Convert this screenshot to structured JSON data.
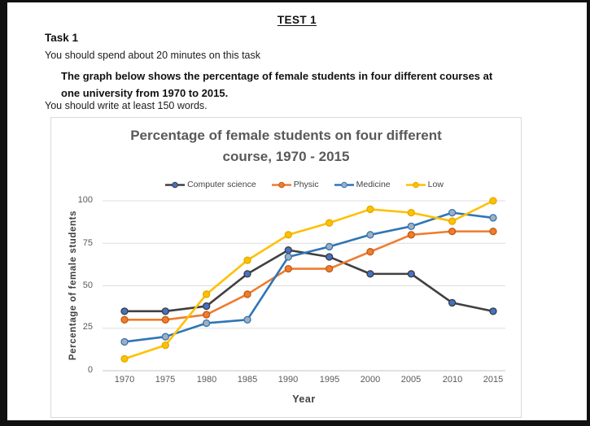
{
  "header": {
    "test_title": "TEST 1",
    "task_label": "Task 1",
    "time_note": "You should spend about 20 minutes on this task",
    "prompt_lines": [
      "The graph below shows the percentage of female students in four different courses at",
      "one university from 1970 to 2015."
    ],
    "word_note": "You should write at least 150 words."
  },
  "chart_data": {
    "type": "line",
    "title": "Percentage of female students on four different course, 1970 - 2015",
    "title_line1": "Percentage of female students on four different",
    "title_line2": "course, 1970 - 2015",
    "xlabel": "Year",
    "ylabel": "Percentage of female students",
    "ylim": [
      0,
      100
    ],
    "yticks": [
      100,
      75,
      50,
      25,
      0
    ],
    "grid": true,
    "legend_position": "top",
    "categories": [
      "1970",
      "1975",
      "1980",
      "1985",
      "1990",
      "1995",
      "2000",
      "2005",
      "2010",
      "2015"
    ],
    "series": [
      {
        "name": "Computer science",
        "color": "#404040",
        "marker_color": "#4472C4",
        "marker_stroke": "#3a3a3a",
        "values": [
          35,
          35,
          38,
          57,
          71,
          67,
          57,
          57,
          40,
          35
        ]
      },
      {
        "name": "Physic",
        "color": "#ED7D31",
        "marker_color": "#ED7D31",
        "marker_stroke": "#C55A11",
        "values": [
          30,
          30,
          33,
          45,
          60,
          60,
          70,
          80,
          82,
          82
        ]
      },
      {
        "name": "Medicine",
        "color": "#2E75B6",
        "marker_color": "#A2AEBB",
        "marker_stroke": "#2E75B6",
        "values": [
          17,
          20,
          28,
          30,
          67,
          73,
          80,
          85,
          93,
          90
        ]
      },
      {
        "name": "Low",
        "color": "#FFC000",
        "marker_color": "#FFC000",
        "marker_stroke": "#E3A800",
        "values": [
          7,
          15,
          45,
          65,
          80,
          87,
          95,
          93,
          88,
          100
        ]
      }
    ],
    "gridline_color": "#dedede",
    "axis_line_color": "#c6c6c6"
  }
}
